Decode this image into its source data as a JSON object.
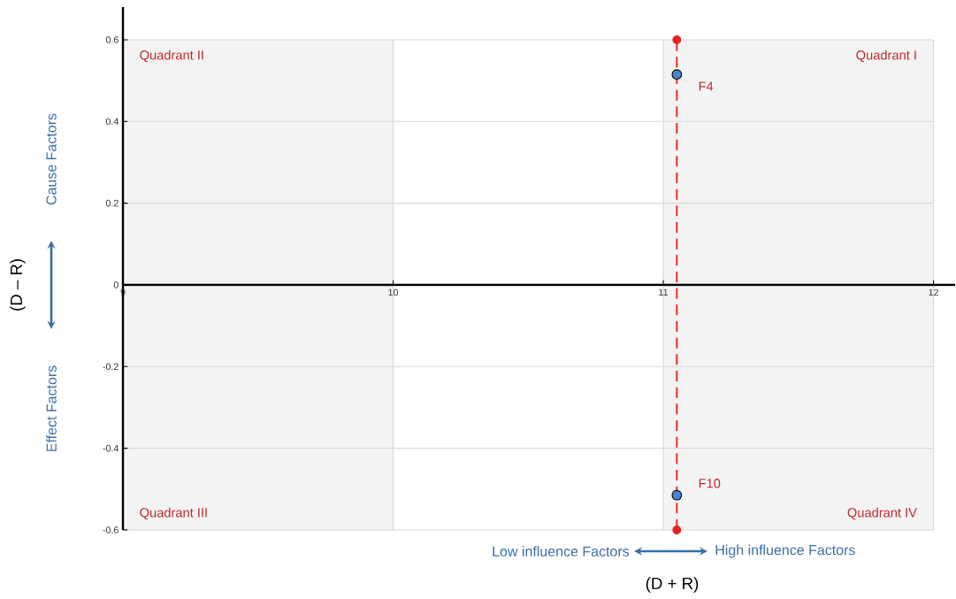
{
  "chart_data": {
    "type": "scatter",
    "xlabel": "(D + R)",
    "ylabel": "(D – R)",
    "x": [
      11.05,
      11.05
    ],
    "series": [
      {
        "values": [
          0.515,
          -0.515
        ],
        "color": "#4a86c8",
        "marker": "circle"
      },
      {
        "type": "line",
        "x": [
          11.05,
          11.05
        ],
        "values": [
          -0.6,
          0.6
        ],
        "color": "#e8221e",
        "marker": "circle",
        "line_style": "dashed"
      }
    ],
    "xlim": [
      9,
      12.08
    ],
    "ylim": [
      -0.6,
      0.68
    ],
    "xticks": [
      9,
      10,
      11,
      12
    ],
    "yticks": [
      -0.6,
      -0.4,
      -0.2,
      0,
      0.2,
      0.4,
      0.6
    ],
    "grid": true,
    "bands": [
      {
        "axis": "x",
        "from": 9,
        "to": 10,
        "color": "#f3f3f3"
      },
      {
        "axis": "x",
        "from": 11,
        "to": 12,
        "color": "#f3f3f3"
      }
    ],
    "annotations": [
      "Quadrant II",
      "Quadrant I",
      "Quadrant III",
      "Quadrant IV",
      {
        "text": "F4",
        "x": 11.05,
        "y": 0.515
      },
      {
        "text": "F10",
        "x": 11.05,
        "y": -0.515
      },
      "Cause Factors",
      "Effect Factors",
      "Low influence Factors",
      "High influence Factors"
    ]
  }
}
